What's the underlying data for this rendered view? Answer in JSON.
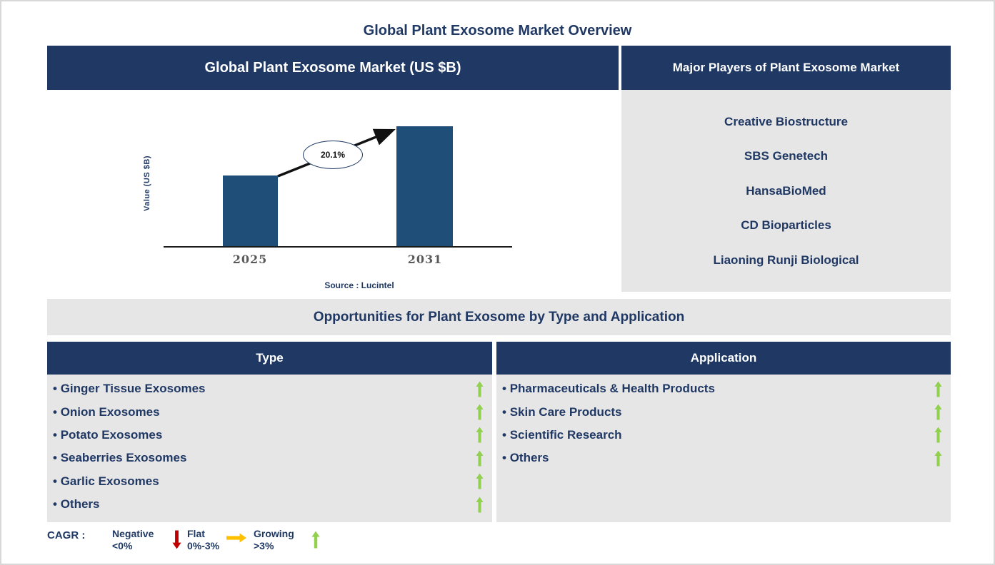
{
  "page_title": "Global Plant Exosome Market Overview",
  "market_chart_panel": {
    "header": "Global Plant Exosome Market (US $B)",
    "source_note": "Source : Lucintel"
  },
  "chart_data": {
    "type": "bar",
    "title": "Global Plant Exosome Market (US $B)",
    "categories": [
      "2025",
      "2031"
    ],
    "values": [
      100,
      169
    ],
    "ylabel": "Value (US $B)",
    "xlabel": "",
    "axis_scale": "unlabeled; bar heights relative",
    "growth_annotation": "20.1%",
    "bar_color": "#1F4E79",
    "legend_position": "none",
    "grid": false
  },
  "major_players_panel": {
    "header": "Major Players of Plant Exosome Market",
    "players": [
      "Creative Biostructure",
      "SBS Genetech",
      "HansaBioMed",
      "CD Bioparticles",
      "Liaoning Runji Biological"
    ]
  },
  "opportunities": {
    "banner": "Opportunities for Plant Exosome by Type and Application",
    "type_panel": {
      "header": "Type",
      "items": [
        {
          "label": "Ginger Tissue Exosomes",
          "trend": "growing"
        },
        {
          "label": "Onion Exosomes",
          "trend": "growing"
        },
        {
          "label": "Potato Exosomes",
          "trend": "growing"
        },
        {
          "label": "Seaberries Exosomes",
          "trend": "growing"
        },
        {
          "label": "Garlic Exosomes",
          "trend": "growing"
        },
        {
          "label": "Others",
          "trend": "growing"
        }
      ]
    },
    "application_panel": {
      "header": "Application",
      "items": [
        {
          "label": "Pharmaceuticals & Health Products",
          "trend": "growing"
        },
        {
          "label": "Skin Care Products",
          "trend": "growing"
        },
        {
          "label": "Scientific Research",
          "trend": "growing"
        },
        {
          "label": "Others",
          "trend": "growing"
        }
      ]
    }
  },
  "legend": {
    "title": "CAGR :",
    "entries": [
      {
        "label": "Negative",
        "range": "<0%",
        "icon": "down-arrow",
        "color": "#C00000"
      },
      {
        "label": "Flat",
        "range": "0%-3%",
        "icon": "right-arrow",
        "color": "#FFC000"
      },
      {
        "label": "Growing",
        "range": ">3%",
        "icon": "up-arrow",
        "color": "#92D050"
      }
    ]
  },
  "colors": {
    "navy": "#1F3864",
    "panel_gray": "#E7E6E6",
    "bar_blue": "#1F4E79",
    "growing_green": "#92D050",
    "negative_red": "#C00000",
    "flat_yellow": "#FFC000"
  }
}
